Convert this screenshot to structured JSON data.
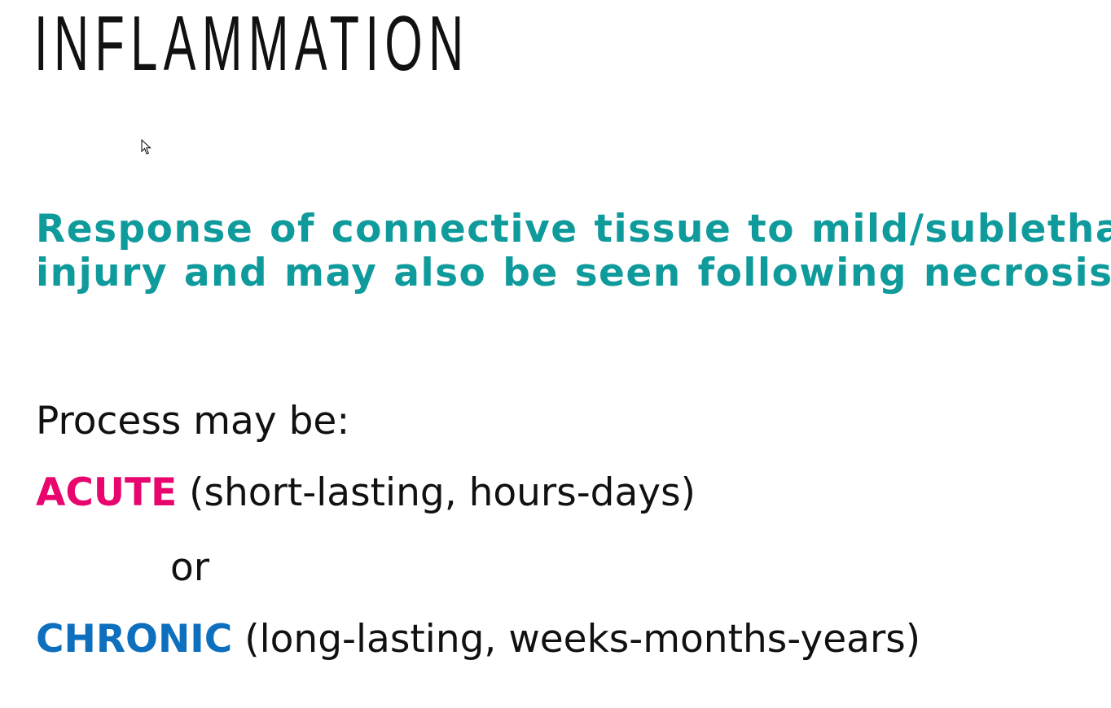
{
  "slide": {
    "title": "INFLAMMATION",
    "definition": {
      "line1": "Response of connective tissue to mild/sublethal",
      "line2": "injury and may also be seen following necrosis"
    },
    "process_intro": "Process may be:",
    "acute": {
      "label": "ACUTE",
      "description": "(short-lasting, hours-days)"
    },
    "connector": "or",
    "chronic": {
      "label": "CHRONIC",
      "description": "(long-lasting, weeks-months-years)"
    }
  },
  "colors": {
    "definition": "#0f9a9b",
    "acute": "#e8066e",
    "chronic": "#0d6fbd",
    "text": "#111111",
    "background": "#ffffff"
  },
  "icons": {
    "cursor": "mouse-pointer-icon"
  }
}
